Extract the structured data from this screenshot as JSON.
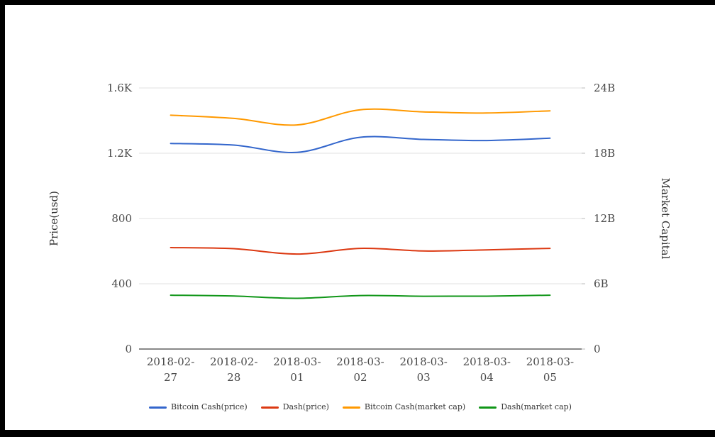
{
  "frame": {
    "border_color": "#000000",
    "background": "#ffffff"
  },
  "chart_data": {
    "type": "line",
    "title": "",
    "smooth": true,
    "grid": true,
    "x_categories": [
      "2018-02-27",
      "2018-02-28",
      "2018-03-01",
      "2018-03-02",
      "2018-03-03",
      "2018-03-04",
      "2018-03-05"
    ],
    "left_axis": {
      "title": "Price(usd)",
      "tick_labels": [
        "0",
        "400",
        "800",
        "1.2K",
        "1.6K"
      ],
      "min": 0,
      "max": 1600
    },
    "right_axis": {
      "title": "Market Capital",
      "tick_labels": [
        "0",
        "6B",
        "12B",
        "18B",
        "24B"
      ],
      "min": 0,
      "max": 24
    },
    "series": [
      {
        "name": "Bitcoin Cash(price)",
        "axis": "left",
        "color": "#3366cc",
        "values": [
          1260,
          1250,
          1205,
          1298,
          1285,
          1278,
          1292
        ]
      },
      {
        "name": "Dash(price)",
        "axis": "left",
        "color": "#dc3912",
        "values": [
          622,
          615,
          582,
          617,
          601,
          608,
          617
        ]
      },
      {
        "name": "Bitcoin Cash(market cap)",
        "axis": "right",
        "color": "#ff9900",
        "values": [
          21.5,
          21.2,
          20.6,
          22.0,
          21.8,
          21.7,
          21.9
        ]
      },
      {
        "name": "Dash(market cap)",
        "axis": "right",
        "color": "#109618",
        "values": [
          4.95,
          4.87,
          4.66,
          4.92,
          4.85,
          4.86,
          4.95
        ]
      }
    ],
    "legend": {
      "position": "bottom",
      "items": [
        "Bitcoin Cash(price)",
        "Dash(price)",
        "Bitcoin Cash(market cap)",
        "Dash(market cap)"
      ]
    },
    "axis_colors": {
      "grid_line": "#e2e2e2",
      "axis_line": "#424242",
      "tick_mark": "#bbbbbb",
      "tick_text": "#494949"
    }
  }
}
